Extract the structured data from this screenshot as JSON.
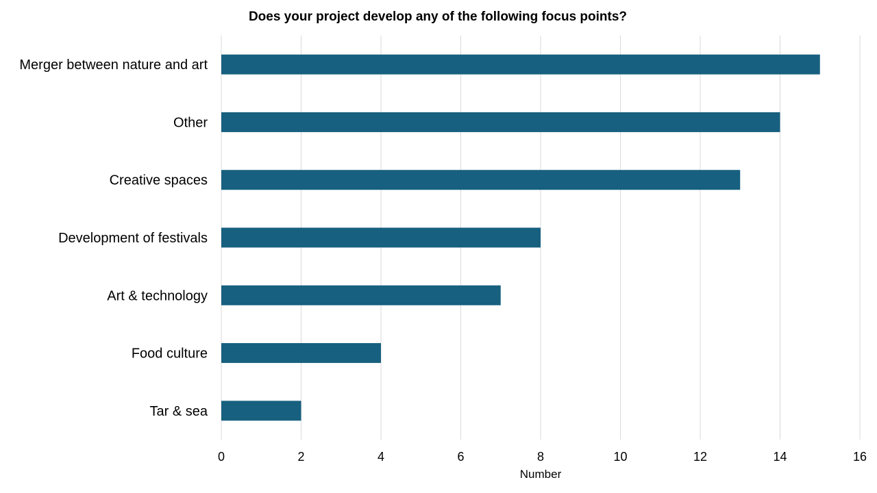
{
  "chart_data": {
    "type": "bar",
    "orientation": "horizontal",
    "title": "Does your project develop any of the following focus points?",
    "xlabel": "Number",
    "ylabel": "",
    "categories": [
      "Merger between nature and art",
      "Other",
      "Creative spaces",
      "Development of festivals",
      "Art & technology",
      "Food culture",
      "Tar & sea"
    ],
    "values": [
      15,
      14,
      13,
      8,
      7,
      4,
      2
    ],
    "xlim": [
      0,
      16
    ],
    "xticks": [
      0,
      2,
      4,
      6,
      8,
      10,
      12,
      14,
      16
    ],
    "grid": true,
    "legend": "none",
    "bar_color": "#17607f",
    "grid_color": "#d9d9d9"
  }
}
